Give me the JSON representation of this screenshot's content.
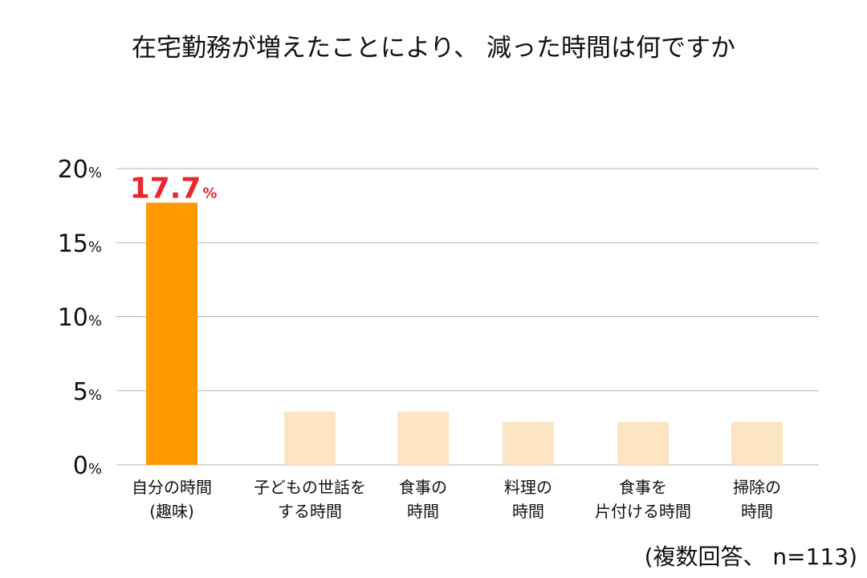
{
  "chart_data": {
    "type": "bar",
    "title": "在宅勤務が増えたことにより、 減った時間は何ですか",
    "categories": [
      [
        "自分の時間",
        "(趣味)"
      ],
      [
        "子どもの世話を",
        "する時間"
      ],
      [
        "食事の",
        "時間"
      ],
      [
        "料理の",
        "時間"
      ],
      [
        "食事を",
        "片付ける時間"
      ],
      [
        "掃除の",
        "時間"
      ]
    ],
    "values": [
      17.7,
      3.6,
      3.6,
      2.9,
      2.9,
      2.9
    ],
    "highlight_index": 0,
    "data_labels": [
      {
        "index": 0,
        "value": "17.7",
        "unit": "%"
      }
    ],
    "yticks": [
      {
        "value": 0,
        "label": "0",
        "unit": "%"
      },
      {
        "value": 5,
        "label": "5",
        "unit": "%"
      },
      {
        "value": 10,
        "label": "10",
        "unit": "%"
      },
      {
        "value": 15,
        "label": "15",
        "unit": "%"
      },
      {
        "value": 20,
        "label": "20",
        "unit": "%"
      }
    ],
    "ylim": [
      0,
      20
    ],
    "grid": true,
    "xlabel": "",
    "ylabel": "",
    "footnote": "(複数回答、 n=113)",
    "colors": {
      "highlight": "#ff9900",
      "default": "#fde5c3",
      "data_label": "#e8262d",
      "grid": "#b3b3b3",
      "text": "#111111"
    }
  }
}
